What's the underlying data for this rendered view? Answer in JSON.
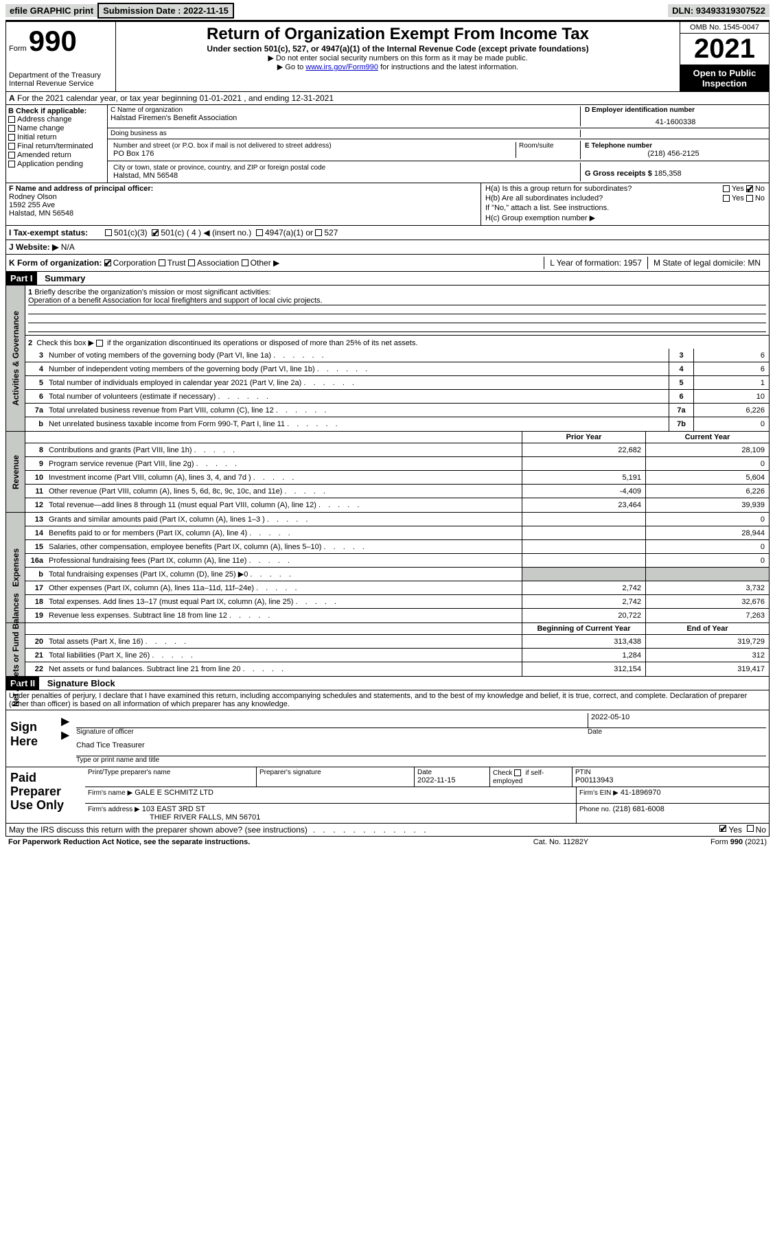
{
  "topbar": {
    "efile": "efile GRAPHIC print",
    "subdate_label": "Submission Date : 2022-11-15",
    "dln": "DLN: 93493319307522"
  },
  "header": {
    "form_label": "Form",
    "form_number": "990",
    "title": "Return of Organization Exempt From Income Tax",
    "sub1": "Under section 501(c), 527, or 4947(a)(1) of the Internal Revenue Code (except private foundations)",
    "sub2": "▶ Do not enter social security numbers on this form as it may be made public.",
    "sub3_pre": "▶ Go to ",
    "sub3_link": "www.irs.gov/Form990",
    "sub3_post": " for instructions and the latest information.",
    "dept": "Department of the Treasury",
    "irs": "Internal Revenue Service",
    "omb": "OMB No. 1545-0047",
    "year": "2021",
    "openpub": "Open to Public Inspection"
  },
  "rowA": {
    "label": "A",
    "text": "For the 2021 calendar year, or tax year beginning 01-01-2021   , and ending 12-31-2021"
  },
  "B": {
    "label": "B Check if applicable:",
    "opts": [
      "Address change",
      "Name change",
      "Initial return",
      "Final return/terminated",
      "Amended return",
      "Application pending"
    ]
  },
  "C": {
    "name_label": "C Name of organization",
    "name": "Halstad Firemen's Benefit Association",
    "dba_label": "Doing business as",
    "dba": "",
    "addr_label": "Number and street (or P.O. box if mail is not delivered to street address)",
    "room_label": "Room/suite",
    "addr": "PO Box 176",
    "city_label": "City or town, state or province, country, and ZIP or foreign postal code",
    "city": "Halstad, MN  56548"
  },
  "D": {
    "label": "D Employer identification number",
    "ein": "41-1600338"
  },
  "E": {
    "label": "E Telephone number",
    "phone": "(218) 456-2125"
  },
  "G": {
    "label": "G Gross receipts $",
    "val": "185,358"
  },
  "F": {
    "label": "F Name and address of principal officer:",
    "name": "Rodney Olson",
    "addr1": "1592 255 Ave",
    "addr2": "Halstad, MN  56548"
  },
  "H": {
    "a": "H(a)  Is this a group return for subordinates?",
    "a_yes": "Yes",
    "a_no": "No",
    "b": "H(b)  Are all subordinates included?",
    "b_yes": "Yes",
    "b_no": "No",
    "b_note": "If \"No,\" attach a list. See instructions.",
    "c": "H(c)  Group exemption number ▶"
  },
  "I": {
    "label": "I  Tax-exempt status:",
    "o1": "501(c)(3)",
    "o2": "501(c) ( 4 ) ◀ (insert no.)",
    "o3": "4947(a)(1) or",
    "o4": "527"
  },
  "J": {
    "label": "J  Website: ▶",
    "val": "N/A"
  },
  "K": {
    "label": "K Form of organization:",
    "o1": "Corporation",
    "o2": "Trust",
    "o3": "Association",
    "o4": "Other ▶",
    "L": "L Year of formation: 1957",
    "M": "M State of legal domicile: MN"
  },
  "partI": {
    "hdr": "Part I",
    "title": "Summary"
  },
  "summary": {
    "l1_label": "1",
    "l1": "Briefly describe the organization's mission or most significant activities:",
    "l1_text": "Operation of a benefit Association for local firefighters and support of local civic projects.",
    "l2": "Check this box ▶",
    "l2_post": " if the organization discontinued its operations or disposed of more than 25% of its net assets.",
    "rows": [
      {
        "n": "3",
        "d": "Number of voting members of the governing body (Part VI, line 1a)",
        "k": "3",
        "v": "6"
      },
      {
        "n": "4",
        "d": "Number of independent voting members of the governing body (Part VI, line 1b)",
        "k": "4",
        "v": "6"
      },
      {
        "n": "5",
        "d": "Total number of individuals employed in calendar year 2021 (Part V, line 2a)",
        "k": "5",
        "v": "1"
      },
      {
        "n": "6",
        "d": "Total number of volunteers (estimate if necessary)",
        "k": "6",
        "v": "10"
      },
      {
        "n": "7a",
        "d": "Total unrelated business revenue from Part VIII, column (C), line 12",
        "k": "7a",
        "v": "6,226"
      },
      {
        "n": "b",
        "d": "Net unrelated business taxable income from Form 990-T, Part I, line 11",
        "k": "7b",
        "v": "0"
      }
    ]
  },
  "twoColHdr": {
    "c1": "Prior Year",
    "c2": "Current Year"
  },
  "revenue": [
    {
      "n": "8",
      "d": "Contributions and grants (Part VIII, line 1h)",
      "c1": "22,682",
      "c2": "28,109"
    },
    {
      "n": "9",
      "d": "Program service revenue (Part VIII, line 2g)",
      "c1": "",
      "c2": "0"
    },
    {
      "n": "10",
      "d": "Investment income (Part VIII, column (A), lines 3, 4, and 7d )",
      "c1": "5,191",
      "c2": "5,604"
    },
    {
      "n": "11",
      "d": "Other revenue (Part VIII, column (A), lines 5, 6d, 8c, 9c, 10c, and 11e)",
      "c1": "-4,409",
      "c2": "6,226"
    },
    {
      "n": "12",
      "d": "Total revenue—add lines 8 through 11 (must equal Part VIII, column (A), line 12)",
      "c1": "23,464",
      "c2": "39,939"
    }
  ],
  "expenses": [
    {
      "n": "13",
      "d": "Grants and similar amounts paid (Part IX, column (A), lines 1–3 )",
      "c1": "",
      "c2": "0"
    },
    {
      "n": "14",
      "d": "Benefits paid to or for members (Part IX, column (A), line 4)",
      "c1": "",
      "c2": "28,944"
    },
    {
      "n": "15",
      "d": "Salaries, other compensation, employee benefits (Part IX, column (A), lines 5–10)",
      "c1": "",
      "c2": "0"
    },
    {
      "n": "16a",
      "d": "Professional fundraising fees (Part IX, column (A), line 11e)",
      "c1": "",
      "c2": "0"
    },
    {
      "n": "b",
      "d": "Total fundraising expenses (Part IX, column (D), line 25) ▶0",
      "c1": "shaded",
      "c2": "shaded"
    },
    {
      "n": "17",
      "d": "Other expenses (Part IX, column (A), lines 11a–11d, 11f–24e)",
      "c1": "2,742",
      "c2": "3,732"
    },
    {
      "n": "18",
      "d": "Total expenses. Add lines 13–17 (must equal Part IX, column (A), line 25)",
      "c1": "2,742",
      "c2": "32,676"
    },
    {
      "n": "19",
      "d": "Revenue less expenses. Subtract line 18 from line 12",
      "c1": "20,722",
      "c2": "7,263"
    }
  ],
  "netHdr": {
    "c1": "Beginning of Current Year",
    "c2": "End of Year"
  },
  "net": [
    {
      "n": "20",
      "d": "Total assets (Part X, line 16)",
      "c1": "313,438",
      "c2": "319,729"
    },
    {
      "n": "21",
      "d": "Total liabilities (Part X, line 26)",
      "c1": "1,284",
      "c2": "312"
    },
    {
      "n": "22",
      "d": "Net assets or fund balances. Subtract line 21 from line 20",
      "c1": "312,154",
      "c2": "319,417"
    }
  ],
  "vlabels": {
    "ag": "Activities & Governance",
    "rev": "Revenue",
    "exp": "Expenses",
    "net": "Net Assets or Fund Balances"
  },
  "partII": {
    "hdr": "Part II",
    "title": "Signature Block"
  },
  "sig": {
    "penalty": "Under penalties of perjury, I declare that I have examined this return, including accompanying schedules and statements, and to the best of my knowledge and belief, it is true, correct, and complete. Declaration of preparer (other than officer) is based on all information of which preparer has any knowledge.",
    "signhere": "Sign Here",
    "sigoff": "Signature of officer",
    "date_label": "Date",
    "date": "2022-05-10",
    "name": "Chad Tice Treasurer",
    "name_label": "Type or print name and title"
  },
  "prep": {
    "label": "Paid Preparer Use Only",
    "h1": "Print/Type preparer's name",
    "h2": "Preparer's signature",
    "h3_label": "Date",
    "h3": "2022-11-15",
    "h4_label": "Check",
    "h4_post": "if self-employed",
    "h5_label": "PTIN",
    "h5": "P00113943",
    "firm_label": "Firm's name   ▶",
    "firm": "GALE E SCHMITZ LTD",
    "ein_label": "Firm's EIN ▶",
    "ein": "41-1896970",
    "addr_label": "Firm's address ▶",
    "addr1": "103 EAST 3RD ST",
    "addr2": "THIEF RIVER FALLS, MN  56701",
    "phone_label": "Phone no.",
    "phone": "(218) 681-6008"
  },
  "last": {
    "q": "May the IRS discuss this return with the preparer shown above? (see instructions)",
    "yes": "Yes",
    "no": "No"
  },
  "footer": {
    "l": "For Paperwork Reduction Act Notice, see the separate instructions.",
    "c": "Cat. No. 11282Y",
    "r": "Form 990 (2021)"
  }
}
